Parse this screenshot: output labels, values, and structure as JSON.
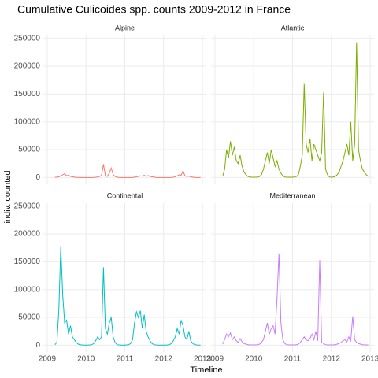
{
  "chart_data": {
    "type": "line",
    "title": "Cumulative Culicoides spp. counts 2009-2012 in France",
    "x_label": "Timeline",
    "y_label": "indiv. counted",
    "xlim": [
      2008.9,
      2013.1
    ],
    "xticks": [
      2009,
      2010,
      2011,
      2012,
      2013
    ],
    "ylim": [
      -12150,
      255150
    ],
    "yticks": [
      0,
      50000,
      100000,
      150000,
      200000,
      250000
    ],
    "grid": true,
    "x": [
      2009.2,
      2009.25,
      2009.3,
      2009.35,
      2009.4,
      2009.45,
      2009.5,
      2009.55,
      2009.6,
      2009.65,
      2009.7,
      2009.75,
      2009.8,
      2009.85,
      2009.9,
      2009.95,
      2010.0,
      2010.05,
      2010.1,
      2010.15,
      2010.2,
      2010.25,
      2010.3,
      2010.35,
      2010.4,
      2010.45,
      2010.5,
      2010.55,
      2010.6,
      2010.65,
      2010.7,
      2010.75,
      2010.8,
      2010.85,
      2010.9,
      2010.95,
      2011.0,
      2011.05,
      2011.1,
      2011.15,
      2011.2,
      2011.25,
      2011.3,
      2011.35,
      2011.4,
      2011.45,
      2011.5,
      2011.55,
      2011.6,
      2011.65,
      2011.7,
      2011.75,
      2011.8,
      2011.85,
      2011.9,
      2011.95,
      2012.0,
      2012.05,
      2012.1,
      2012.15,
      2012.2,
      2012.25,
      2012.3,
      2012.35,
      2012.4,
      2012.45,
      2012.5,
      2012.55,
      2012.6,
      2012.65,
      2012.7,
      2012.75,
      2012.8,
      2012.85,
      2012.9,
      2012.95
    ],
    "series": [
      {
        "name": "Alpine",
        "color": "#F8766D",
        "values": [
          500,
          800,
          1500,
          3000,
          5000,
          7000,
          3000,
          4000,
          2000,
          1500,
          800,
          300,
          200,
          100,
          100,
          100,
          100,
          100,
          100,
          100,
          200,
          500,
          1000,
          2000,
          4000,
          24000,
          3000,
          2000,
          8000,
          17000,
          5000,
          2000,
          800,
          300,
          100,
          100,
          100,
          100,
          100,
          100,
          200,
          500,
          1500,
          2000,
          3000,
          2500,
          4000,
          2000,
          3500,
          2000,
          1500,
          800,
          300,
          100,
          100,
          100,
          100,
          100,
          100,
          100,
          200,
          500,
          1500,
          3000,
          5000,
          4000,
          12000,
          3000,
          2000,
          2500,
          1500,
          800,
          300,
          100,
          100,
          100
        ]
      },
      {
        "name": "Atlantic",
        "color": "#7CAE00",
        "values": [
          2000,
          15000,
          50000,
          35000,
          65000,
          40000,
          55000,
          30000,
          25000,
          40000,
          20000,
          10000,
          5000,
          2000,
          1000,
          500,
          500,
          500,
          1000,
          2000,
          5000,
          15000,
          30000,
          45000,
          25000,
          50000,
          35000,
          20000,
          30000,
          15000,
          8000,
          3000,
          1000,
          500,
          500,
          500,
          500,
          1000,
          2000,
          5000,
          20000,
          40000,
          168000,
          60000,
          45000,
          70000,
          30000,
          60000,
          50000,
          40000,
          30000,
          45000,
          153000,
          15000,
          5000,
          1000,
          500,
          1000,
          2000,
          5000,
          10000,
          20000,
          30000,
          45000,
          60000,
          40000,
          100000,
          30000,
          60000,
          243000,
          50000,
          30000,
          15000,
          10000,
          5000,
          2000
        ]
      },
      {
        "name": "Continental",
        "color": "#00BFC4",
        "values": [
          1000,
          5000,
          63000,
          177000,
          90000,
          40000,
          45000,
          20000,
          35000,
          15000,
          10000,
          5000,
          2000,
          1000,
          500,
          300,
          300,
          300,
          500,
          1000,
          3000,
          8000,
          15000,
          10000,
          15000,
          140000,
          30000,
          20000,
          40000,
          50000,
          15000,
          5000,
          1000,
          500,
          300,
          300,
          300,
          500,
          1000,
          3000,
          10000,
          40000,
          60000,
          50000,
          62000,
          30000,
          55000,
          25000,
          15000,
          8000,
          3000,
          1000,
          500,
          300,
          300,
          300,
          300,
          300,
          500,
          1000,
          3000,
          8000,
          15000,
          30000,
          20000,
          45000,
          35000,
          15000,
          10000,
          25000,
          8000,
          3000,
          1000,
          500,
          300,
          300
        ]
      },
      {
        "name": "Mediterranean",
        "color": "#C77CFF",
        "values": [
          2000,
          10000,
          20000,
          15000,
          22000,
          10000,
          15000,
          8000,
          5000,
          12000,
          6000,
          3000,
          2000,
          1000,
          500,
          500,
          500,
          500,
          1000,
          2000,
          5000,
          10000,
          25000,
          40000,
          20000,
          30000,
          35000,
          20000,
          85000,
          165000,
          40000,
          10000,
          3000,
          1000,
          500,
          500,
          500,
          500,
          1000,
          2000,
          5000,
          10000,
          15000,
          10000,
          8000,
          12000,
          20000,
          10000,
          25000,
          8000,
          153000,
          5000,
          3000,
          1000,
          500,
          500,
          500,
          500,
          1000,
          2000,
          3000,
          5000,
          8000,
          10000,
          6000,
          15000,
          8000,
          52000,
          10000,
          5000,
          3000,
          2000,
          1000,
          500,
          500,
          500
        ]
      }
    ]
  }
}
